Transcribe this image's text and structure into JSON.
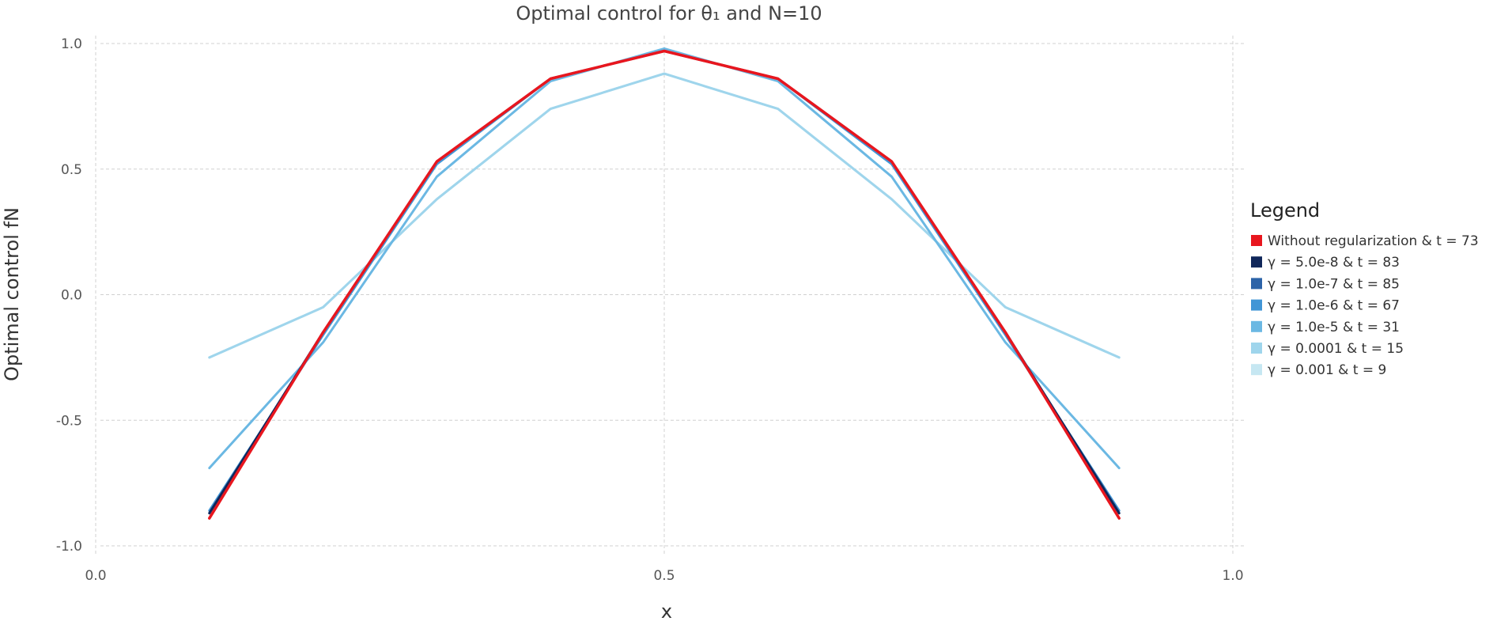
{
  "chart_data": {
    "type": "line",
    "title": "Optimal control for θ₁ and N=10",
    "xlabel": "x",
    "ylabel": "Optimal control fN",
    "xlim": [
      0.0,
      1.0
    ],
    "ylim": [
      -1.0,
      1.0
    ],
    "xticks": [
      "0.0",
      "0.5",
      "1.0"
    ],
    "yticks": [
      "1.0",
      "0.5",
      "0.0",
      "-0.5",
      "-1.0"
    ],
    "grid": true,
    "legend": {
      "title": "Legend",
      "position": "right"
    },
    "x": [
      0.1,
      0.2,
      0.3,
      0.4,
      0.5,
      0.6,
      0.7,
      0.8,
      0.9
    ],
    "series": [
      {
        "name": "γ = 0.001 & t = 9",
        "color": "#c6e7f2",
        "values": [
          -0.25,
          -0.05,
          0.38,
          0.74,
          0.88,
          0.74,
          0.38,
          -0.05,
          -0.25
        ]
      },
      {
        "name": "γ = 0.0001 & t = 15",
        "color": "#9fd5ec",
        "values": [
          -0.25,
          -0.05,
          0.38,
          0.74,
          0.88,
          0.74,
          0.38,
          -0.05,
          -0.25
        ]
      },
      {
        "name": "γ = 1.0e-5 & t = 31",
        "color": "#6bb8e3",
        "values": [
          -0.69,
          -0.19,
          0.47,
          0.85,
          0.98,
          0.85,
          0.47,
          -0.19,
          -0.69
        ]
      },
      {
        "name": "γ = 1.0e-6 & t = 67",
        "color": "#4196d6",
        "values": [
          -0.86,
          -0.16,
          0.52,
          0.86,
          0.97,
          0.86,
          0.52,
          -0.16,
          -0.86
        ]
      },
      {
        "name": "γ = 1.0e-7 & t = 85",
        "color": "#2c63a8",
        "values": [
          -0.87,
          -0.15,
          0.53,
          0.86,
          0.97,
          0.86,
          0.53,
          -0.15,
          -0.87
        ]
      },
      {
        "name": "γ = 5.0e-8 & t = 83",
        "color": "#10275a",
        "values": [
          -0.87,
          -0.15,
          0.53,
          0.86,
          0.97,
          0.86,
          0.53,
          -0.15,
          -0.87
        ]
      },
      {
        "name": "Without regularization & t = 73",
        "color": "#e8161e",
        "values": [
          -0.89,
          -0.15,
          0.53,
          0.86,
          0.97,
          0.86,
          0.53,
          -0.15,
          -0.89
        ]
      }
    ],
    "legend_order": [
      "Without regularization & t = 73",
      "γ = 5.0e-8 & t = 83",
      "γ = 1.0e-7 & t = 85",
      "γ = 1.0e-6 & t = 67",
      "γ = 1.0e-5 & t = 31",
      "γ = 0.0001 & t = 15",
      "γ = 0.001 & t = 9"
    ]
  }
}
